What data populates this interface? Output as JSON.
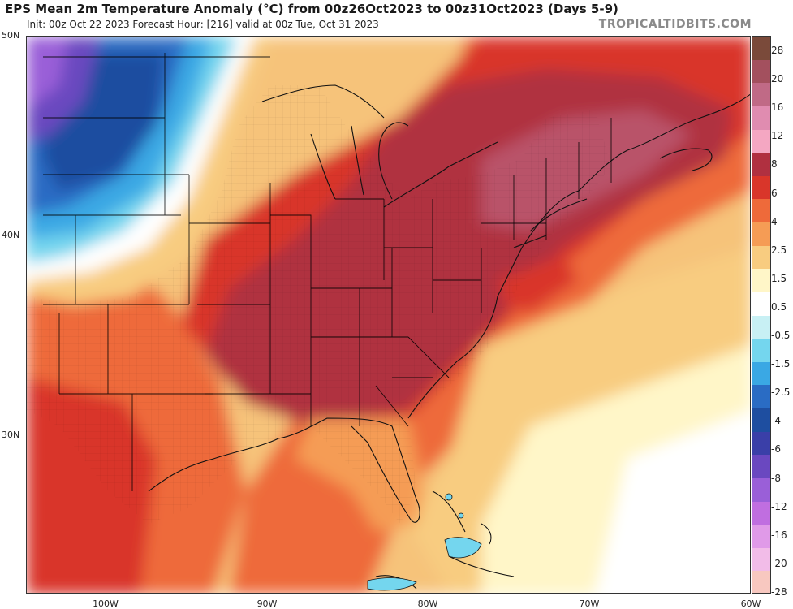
{
  "header": {
    "title": "EPS Mean 2m Temperature Anomaly (°C) from 00z26Oct2023 to 00z31Oct2023 (Days 5-9)",
    "subtitle": "Init: 00z Oct 22 2023   Forecast Hour: [216]   valid at 00z Tue, Oct 31 2023",
    "brand": "TROPICALTIDBITS.COM"
  },
  "map": {
    "latitude_labels": [
      "50N",
      "40N",
      "30N"
    ],
    "longitude_labels": [
      "100W",
      "90W",
      "80W",
      "70W",
      "60W"
    ]
  },
  "colorbar": {
    "labels": [
      "28",
      "20",
      "16",
      "12",
      "8",
      "6",
      "4",
      "2.5",
      "1.5",
      "0.5",
      "-0.5",
      "-1.5",
      "-2.5",
      "-4",
      "-6",
      "-8",
      "-12",
      "-16",
      "-20",
      "-28"
    ],
    "colors": [
      "#7a4a3a",
      "#a3505e",
      "#c06a86",
      "#e08cb0",
      "#f4a7c2",
      "#b03040",
      "#d9362a",
      "#ee6a3a",
      "#f59c55",
      "#f8cc80",
      "#fff6c8",
      "#ffffff",
      "#c8f0f4",
      "#74d6ee",
      "#3aa8e4",
      "#2a6cc4",
      "#1e4ea0",
      "#3a3fa8",
      "#6a48c0",
      "#9a5fd8",
      "#c06ee0",
      "#e09ae8",
      "#f2bce8",
      "#f8c8c0"
    ]
  }
}
